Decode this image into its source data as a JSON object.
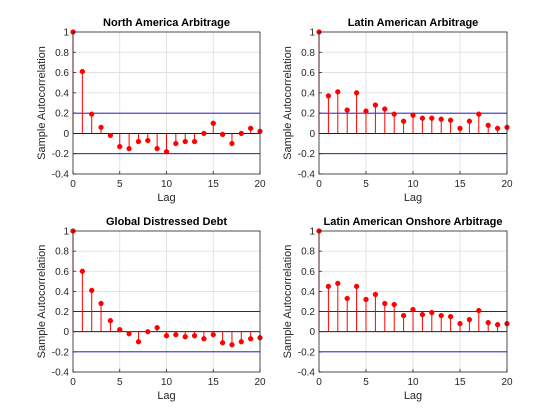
{
  "chart_data": [
    {
      "type": "stem",
      "title": "North America Arbitrage",
      "xlabel": "Lag",
      "ylabel": "Sample Autocorrelation",
      "xlim": [
        0,
        20
      ],
      "ylim": [
        -0.4,
        1
      ],
      "xticks": [
        "0",
        "5",
        "10",
        "15",
        "20"
      ],
      "yticks": [
        "-0.4",
        "-0.2",
        "0",
        "0.2",
        "0.4",
        "0.6",
        "0.8",
        "1"
      ],
      "grid": true,
      "confidence_bounds": [
        0.2,
        -0.2
      ],
      "x": [
        0,
        1,
        2,
        3,
        4,
        5,
        6,
        7,
        8,
        9,
        10,
        11,
        12,
        13,
        14,
        15,
        16,
        17,
        18,
        19,
        20
      ],
      "values": [
        1.0,
        0.61,
        0.19,
        0.06,
        -0.02,
        -0.13,
        -0.15,
        -0.08,
        -0.07,
        -0.15,
        -0.18,
        -0.1,
        -0.08,
        -0.08,
        0.0,
        0.1,
        -0.01,
        -0.1,
        0.0,
        0.05,
        0.02
      ]
    },
    {
      "type": "stem",
      "title": "Latin American Arbitrage",
      "xlabel": "Lag",
      "ylabel": "Sample Autocorrelation",
      "xlim": [
        0,
        20
      ],
      "ylim": [
        -0.4,
        1
      ],
      "xticks": [
        "0",
        "5",
        "10",
        "15",
        "20"
      ],
      "yticks": [
        "-0.4",
        "-0.2",
        "0",
        "0.2",
        "0.4",
        "0.6",
        "0.8",
        "1"
      ],
      "grid": true,
      "confidence_bounds": [
        0.2,
        -0.2
      ],
      "x": [
        0,
        1,
        2,
        3,
        4,
        5,
        6,
        7,
        8,
        9,
        10,
        11,
        12,
        13,
        14,
        15,
        16,
        17,
        18,
        19,
        20
      ],
      "values": [
        1.0,
        0.37,
        0.41,
        0.23,
        0.4,
        0.22,
        0.28,
        0.24,
        0.19,
        0.12,
        0.18,
        0.15,
        0.15,
        0.14,
        0.13,
        0.05,
        0.12,
        0.19,
        0.08,
        0.05,
        0.06
      ]
    },
    {
      "type": "stem",
      "title": "Global Distressed Debt",
      "xlabel": "Lag",
      "ylabel": "Sample Autocorrelation",
      "xlim": [
        0,
        20
      ],
      "ylim": [
        -0.4,
        1
      ],
      "xticks": [
        "0",
        "5",
        "10",
        "15",
        "20"
      ],
      "yticks": [
        "-0.4",
        "-0.2",
        "0",
        "0.2",
        "0.4",
        "0.6",
        "0.8",
        "1"
      ],
      "grid": true,
      "confidence_bounds": [
        0.2,
        -0.2
      ],
      "x": [
        0,
        1,
        2,
        3,
        4,
        5,
        6,
        7,
        8,
        9,
        10,
        11,
        12,
        13,
        14,
        15,
        16,
        17,
        18,
        19,
        20
      ],
      "values": [
        1.0,
        0.6,
        0.41,
        0.28,
        0.11,
        0.02,
        -0.02,
        -0.1,
        0.0,
        0.04,
        -0.04,
        -0.03,
        -0.05,
        -0.04,
        -0.07,
        -0.03,
        -0.11,
        -0.13,
        -0.1,
        -0.07,
        -0.06
      ]
    },
    {
      "type": "stem",
      "title": "Latin American Onshore Arbitrage",
      "xlabel": "Lag",
      "ylabel": "Sample Autocorrelation",
      "xlim": [
        0,
        20
      ],
      "ylim": [
        -0.4,
        1
      ],
      "xticks": [
        "0",
        "5",
        "10",
        "15",
        "20"
      ],
      "yticks": [
        "-0.4",
        "-0.2",
        "0",
        "0.2",
        "0.4",
        "0.6",
        "0.8",
        "1"
      ],
      "grid": true,
      "confidence_bounds": [
        0.2,
        -0.2
      ],
      "x": [
        0,
        1,
        2,
        3,
        4,
        5,
        6,
        7,
        8,
        9,
        10,
        11,
        12,
        13,
        14,
        15,
        16,
        17,
        18,
        19,
        20
      ],
      "values": [
        1.0,
        0.45,
        0.48,
        0.33,
        0.45,
        0.32,
        0.37,
        0.28,
        0.27,
        0.16,
        0.22,
        0.17,
        0.19,
        0.16,
        0.15,
        0.08,
        0.12,
        0.21,
        0.09,
        0.07,
        0.08
      ]
    }
  ],
  "colors": {
    "stem": "#ff0000",
    "bounds": "#0000cc",
    "axes": "#262626",
    "grid": "#dcdcdc",
    "zero": "#000000"
  }
}
